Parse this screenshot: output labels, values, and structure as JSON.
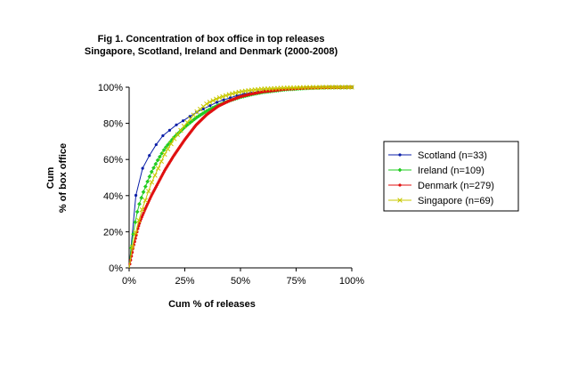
{
  "chart_data": {
    "type": "line",
    "title": "Fig 1. Concentration of box office in top releases",
    "subtitle": "Singapore, Scotland, Ireland and Denmark (2000-2008)",
    "xlabel": "Cum % of releases",
    "ylabel_line1": "Cum",
    "ylabel_line2": "% of box office",
    "xlim": [
      0,
      100
    ],
    "ylim": [
      0,
      100
    ],
    "x_ticks": [
      "0%",
      "25%",
      "50%",
      "75%",
      "100%"
    ],
    "y_ticks": [
      "0%",
      "20%",
      "40%",
      "60%",
      "80%",
      "100%"
    ],
    "grid": false,
    "legend_position": "right",
    "series": [
      {
        "name": "Scotland (n=33)",
        "color": "#0b1fa8",
        "marker": "dot",
        "n": 33,
        "points": [
          [
            0,
            0
          ],
          [
            3,
            40
          ],
          [
            6,
            55
          ],
          [
            9,
            62
          ],
          [
            12,
            68
          ],
          [
            15,
            73
          ],
          [
            18,
            76
          ],
          [
            21,
            79
          ],
          [
            25,
            82
          ],
          [
            30,
            86
          ],
          [
            35,
            89
          ],
          [
            40,
            92
          ],
          [
            45,
            94
          ],
          [
            50,
            96
          ],
          [
            55,
            97
          ],
          [
            60,
            98
          ],
          [
            70,
            99
          ],
          [
            80,
            99.6
          ],
          [
            90,
            99.9
          ],
          [
            100,
            100
          ]
        ]
      },
      {
        "name": "Ireland (n=109)",
        "color": "#22cc22",
        "marker": "diamond",
        "n": 109,
        "points": [
          [
            0,
            0
          ],
          [
            1,
            12
          ],
          [
            2,
            20
          ],
          [
            3,
            27
          ],
          [
            4,
            33
          ],
          [
            5,
            37
          ],
          [
            7,
            44
          ],
          [
            10,
            53
          ],
          [
            13,
            60
          ],
          [
            16,
            66
          ],
          [
            20,
            72
          ],
          [
            25,
            78
          ],
          [
            30,
            83
          ],
          [
            35,
            87
          ],
          [
            40,
            90
          ],
          [
            45,
            92.5
          ],
          [
            50,
            94.5
          ],
          [
            55,
            96
          ],
          [
            60,
            97.2
          ],
          [
            70,
            98.7
          ],
          [
            80,
            99.5
          ],
          [
            90,
            99.9
          ],
          [
            100,
            100
          ]
        ]
      },
      {
        "name": "Denmark (n=279)",
        "color": "#e01010",
        "marker": "dot",
        "n": 279,
        "points": [
          [
            0,
            0
          ],
          [
            1,
            6
          ],
          [
            2,
            12
          ],
          [
            3,
            17
          ],
          [
            4,
            22
          ],
          [
            5,
            26
          ],
          [
            7,
            32
          ],
          [
            10,
            40
          ],
          [
            13,
            47
          ],
          [
            16,
            54
          ],
          [
            20,
            62
          ],
          [
            25,
            71
          ],
          [
            30,
            79
          ],
          [
            35,
            85
          ],
          [
            40,
            89.5
          ],
          [
            45,
            92.5
          ],
          [
            50,
            94.8
          ],
          [
            55,
            96.3
          ],
          [
            60,
            97.5
          ],
          [
            70,
            98.9
          ],
          [
            80,
            99.6
          ],
          [
            90,
            99.9
          ],
          [
            100,
            100
          ]
        ]
      },
      {
        "name": "Singapore (n=69)",
        "color": "#c8c800",
        "marker": "x",
        "n": 69,
        "points": [
          [
            0,
            0
          ],
          [
            1.5,
            12
          ],
          [
            3,
            20
          ],
          [
            4.5,
            27
          ],
          [
            6,
            33
          ],
          [
            8,
            40
          ],
          [
            10,
            47
          ],
          [
            13,
            55
          ],
          [
            16,
            63
          ],
          [
            20,
            71
          ],
          [
            25,
            79
          ],
          [
            30,
            86
          ],
          [
            35,
            91
          ],
          [
            40,
            94
          ],
          [
            45,
            96
          ],
          [
            50,
            97.5
          ],
          [
            55,
            98.4
          ],
          [
            60,
            99
          ],
          [
            70,
            99.6
          ],
          [
            80,
            99.9
          ],
          [
            90,
            100
          ],
          [
            100,
            100
          ]
        ]
      }
    ]
  }
}
